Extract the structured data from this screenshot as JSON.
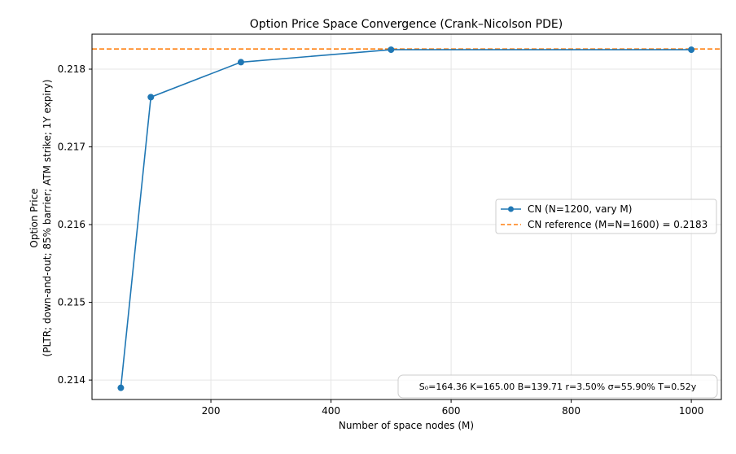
{
  "chart_data": {
    "type": "line",
    "title": "Option Price Space Convergence (Crank–Nicolson PDE)",
    "xlabel": "Number of space nodes (M)",
    "ylabel_line1": "Option Price",
    "ylabel_line2": "(PLTR; down-and-out; 85% barrier; ATM strike; 1Y expiry)",
    "xlim": [
      2,
      1050
    ],
    "ylim": [
      0.21375,
      0.21845
    ],
    "xticks": [
      200,
      400,
      600,
      800,
      1000
    ],
    "xtick_labels": [
      "200",
      "400",
      "600",
      "800",
      "1000"
    ],
    "yticks": [
      0.214,
      0.215,
      0.216,
      0.217,
      0.218
    ],
    "ytick_labels": [
      "0.214",
      "0.215",
      "0.216",
      "0.217",
      "0.218"
    ],
    "grid": true,
    "legend_position": "center-right",
    "series": [
      {
        "name": "CN (N=1200, vary M)",
        "color": "#1f77b4",
        "style": "solid-markers",
        "x": [
          50,
          100,
          250,
          500,
          1000
        ],
        "y": [
          0.2139,
          0.21764,
          0.21809,
          0.21825,
          0.21825
        ]
      },
      {
        "name": "CN reference (M=N=1600) = 0.2183",
        "color": "#ff7f0e",
        "style": "dashed-horizontal",
        "y_value": 0.21826
      }
    ],
    "annotation": "S₀=164.36   K=165.00   B=139.71   r=3.50%   σ=55.90%   T=0.52y"
  }
}
